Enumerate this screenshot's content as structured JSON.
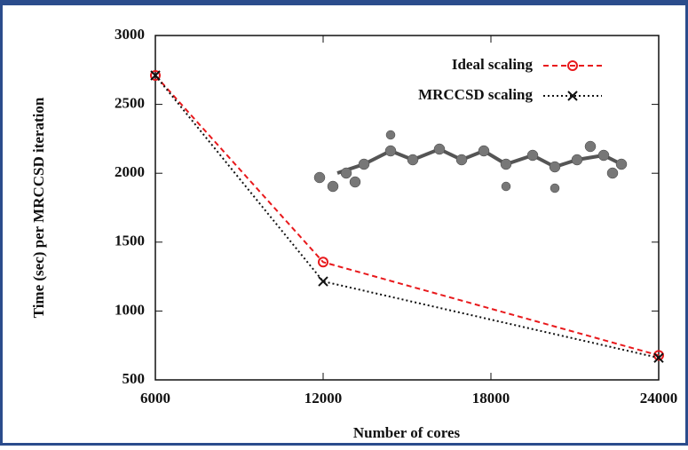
{
  "chart_data": {
    "type": "line",
    "x_label": "Number of cores",
    "y_label": "Time (sec) per MRCCSD iteration",
    "x": [
      6000,
      12000,
      24000
    ],
    "series": [
      {
        "name": "Ideal scaling",
        "color": "#e8191c",
        "values": [
          2710,
          1355,
          678
        ]
      },
      {
        "name": "MRCCSD scaling",
        "color": "#111111",
        "values": [
          2710,
          1215,
          660
        ]
      }
    ],
    "xlim": [
      6000,
      24000
    ],
    "xticks": [
      6000,
      12000,
      18000,
      24000
    ],
    "ylim": [
      500,
      3000
    ],
    "yticks": [
      500,
      1000,
      1500,
      2000,
      2500,
      3000
    ],
    "legend": "upper right"
  }
}
